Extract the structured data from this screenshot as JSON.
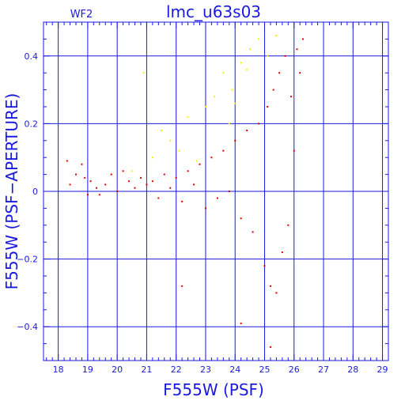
{
  "chart_data": {
    "type": "scatter",
    "title": "lmc_u63s03",
    "panel_label": "WF2",
    "xlabel": "F555W (PSF)",
    "ylabel": "F555W (PSF−APERTURE)",
    "xlim": [
      17.5,
      29.2
    ],
    "ylim": [
      -0.5,
      0.5
    ],
    "x_ticks": [
      18,
      19,
      20,
      21,
      22,
      23,
      24,
      25,
      26,
      27,
      28,
      29
    ],
    "y_ticks": [
      -0.4,
      -0.2,
      0,
      0.2,
      0.4
    ],
    "y_tick_labels": [
      "−0.4",
      "−0.2",
      "0",
      "0.2",
      "0.4"
    ],
    "grid": true,
    "colors": {
      "frame": "#1a1adf",
      "red_points": "#e00000",
      "yellow_points": "#f3f300"
    },
    "series": [
      {
        "color": "red",
        "points": [
          [
            18.3,
            0.09
          ],
          [
            18.4,
            0.02
          ],
          [
            18.6,
            0.05
          ],
          [
            18.8,
            0.08
          ],
          [
            18.9,
            0.04
          ],
          [
            19.0,
            -0.01
          ],
          [
            19.1,
            0.03
          ],
          [
            19.3,
            0.01
          ],
          [
            19.4,
            -0.01
          ],
          [
            19.6,
            0.02
          ],
          [
            19.8,
            0.05
          ],
          [
            20.0,
            0.0
          ],
          [
            20.2,
            0.06
          ],
          [
            20.4,
            0.03
          ],
          [
            20.6,
            0.01
          ],
          [
            20.8,
            0.04
          ],
          [
            21.0,
            0.02
          ],
          [
            21.2,
            0.03
          ],
          [
            21.4,
            -0.02
          ],
          [
            21.6,
            0.05
          ],
          [
            21.8,
            0.01
          ],
          [
            22.0,
            0.04
          ],
          [
            22.2,
            -0.03
          ],
          [
            22.4,
            0.06
          ],
          [
            22.6,
            0.02
          ],
          [
            22.8,
            0.08
          ],
          [
            23.0,
            -0.05
          ],
          [
            23.2,
            0.1
          ],
          [
            23.4,
            -0.02
          ],
          [
            23.6,
            0.12
          ],
          [
            23.8,
            0.0
          ],
          [
            24.0,
            0.15
          ],
          [
            24.2,
            -0.08
          ],
          [
            24.4,
            0.18
          ],
          [
            24.6,
            -0.12
          ],
          [
            24.8,
            0.2
          ],
          [
            25.0,
            -0.22
          ],
          [
            25.1,
            0.25
          ],
          [
            25.2,
            -0.28
          ],
          [
            25.3,
            0.3
          ],
          [
            25.4,
            -0.3
          ],
          [
            25.5,
            0.35
          ],
          [
            25.6,
            -0.18
          ],
          [
            25.7,
            0.4
          ],
          [
            25.8,
            -0.1
          ],
          [
            25.9,
            0.28
          ],
          [
            26.0,
            0.12
          ],
          [
            26.1,
            0.42
          ],
          [
            26.2,
            0.35
          ],
          [
            26.3,
            0.45
          ],
          [
            22.2,
            -0.28
          ],
          [
            24.2,
            -0.39
          ],
          [
            25.2,
            -0.46
          ]
        ]
      },
      {
        "color": "yellow",
        "points": [
          [
            20.5,
            0.06
          ],
          [
            20.9,
            0.35
          ],
          [
            21.2,
            0.1
          ],
          [
            21.5,
            0.18
          ],
          [
            21.8,
            0.15
          ],
          [
            22.1,
            0.12
          ],
          [
            22.4,
            0.22
          ],
          [
            22.7,
            0.09
          ],
          [
            23.0,
            0.25
          ],
          [
            23.3,
            0.28
          ],
          [
            23.6,
            0.35
          ],
          [
            23.9,
            0.3
          ],
          [
            24.2,
            0.38
          ],
          [
            24.5,
            0.42
          ],
          [
            24.8,
            0.45
          ],
          [
            25.1,
            0.4
          ],
          [
            25.4,
            0.46
          ],
          [
            23.8,
            0.2
          ],
          [
            24.0,
            0.26
          ],
          [
            24.4,
            0.36
          ]
        ]
      }
    ]
  }
}
